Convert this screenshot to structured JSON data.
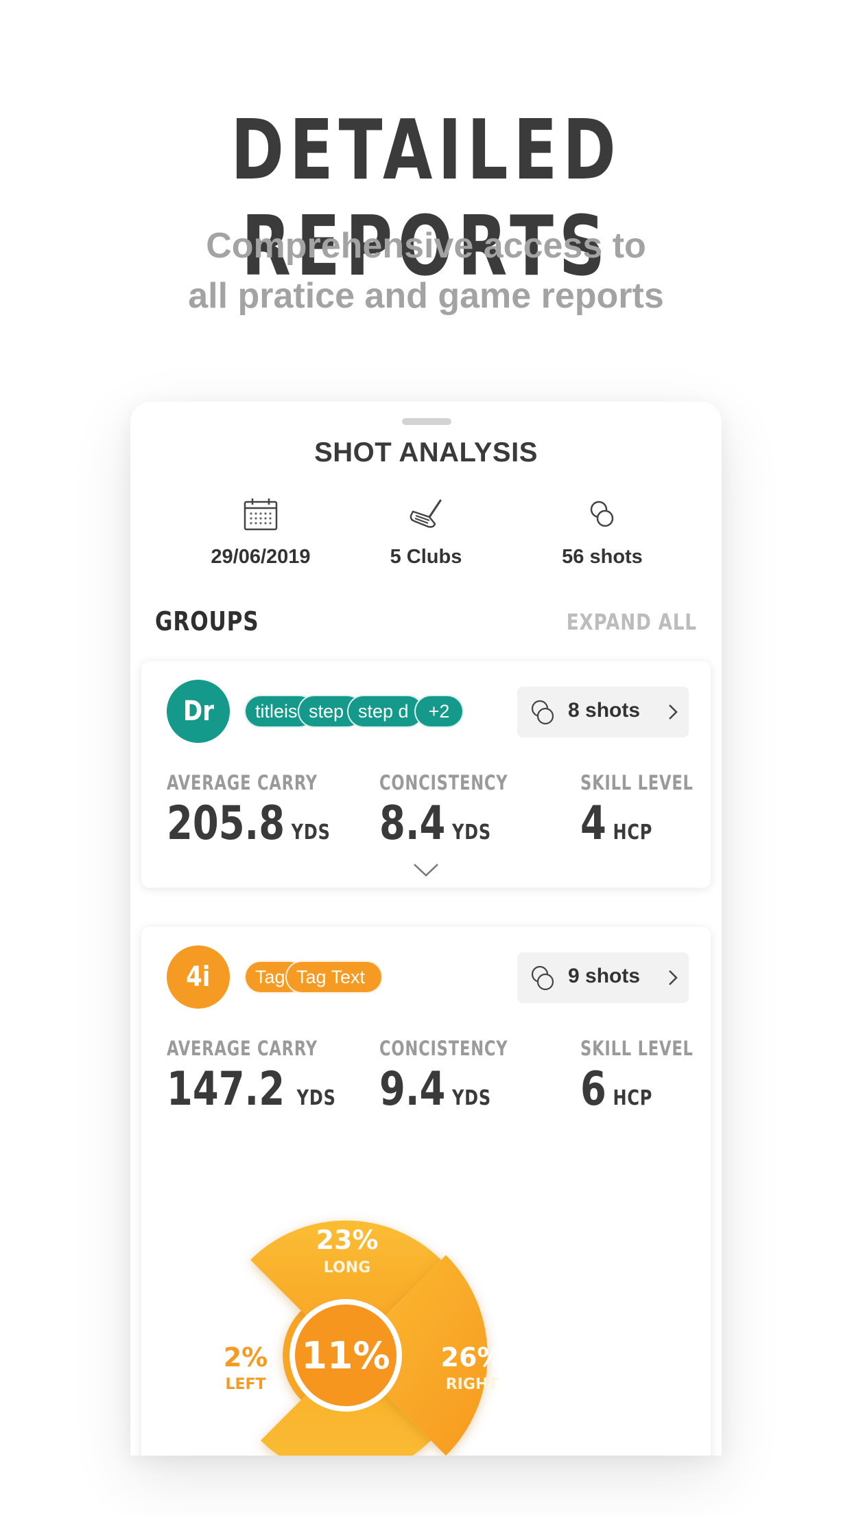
{
  "hero": {
    "title": "DETAILED REPORTS",
    "subtitle_line1": "Comprehensive access to",
    "subtitle_line2": "all pratice and game reports"
  },
  "sheet": {
    "title": "SHOT ANALYSIS",
    "date": "29/06/2019",
    "clubs": "5 Clubs",
    "shots": "56 shots",
    "icons": [
      "calendar-icon",
      "golf-club-icon",
      "golf-balls-icon"
    ]
  },
  "groups": {
    "heading": "GROUPS",
    "expand_all": "EXPAND ALL",
    "items": [
      {
        "club": "Dr",
        "color": "#14998a",
        "tags": [
          "titleist",
          "step",
          "step d",
          "+2"
        ],
        "shots_label": "8 shots",
        "metrics": [
          {
            "label": "AVERAGE CARRY",
            "value": "205.8",
            "unit": "YDS"
          },
          {
            "label": "CONCISTENCY",
            "value": "8.4",
            "unit": "YDS"
          },
          {
            "label": "SKILL LEVEL",
            "value": "4",
            "unit": "HCP"
          }
        ]
      },
      {
        "club": "4i",
        "color": "#f59b23",
        "tags": [
          "Tag",
          "Tag Text"
        ],
        "shots_label": "9 shots",
        "metrics": [
          {
            "label": "AVERAGE CARRY",
            "value": "147.2",
            "unit": "YDS"
          },
          {
            "label": "CONCISTENCY",
            "value": "9.4",
            "unit": "YDS"
          },
          {
            "label": "SKILL LEVEL",
            "value": "6",
            "unit": "HCP"
          }
        ]
      }
    ]
  },
  "dispersion": {
    "center": {
      "value": "11%"
    },
    "long": {
      "value": "23%",
      "label": "LONG"
    },
    "left": {
      "value": "2%",
      "label": "LEFT"
    },
    "right": {
      "value": "26%",
      "label": "RIGHT"
    },
    "colors": {
      "segment_light": "#fbbd34",
      "segment_dark": "#f7a021",
      "left_text": "#f59b23"
    }
  }
}
